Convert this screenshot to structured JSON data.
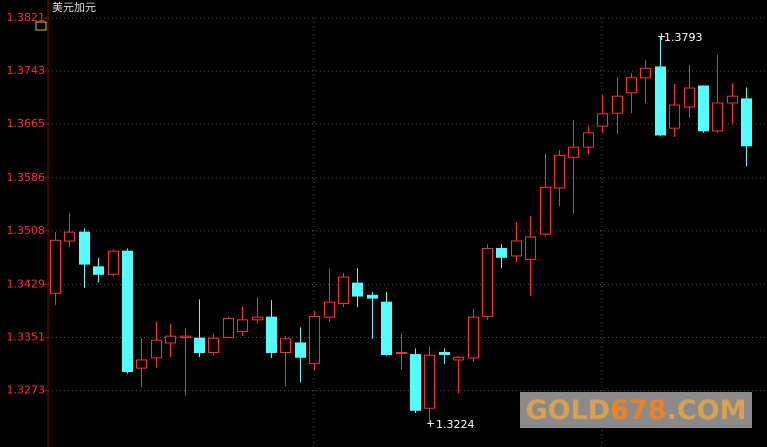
{
  "chart_data": {
    "type": "candlestick",
    "title": "美元加元",
    "ylim": [
      1.319,
      1.3821
    ],
    "yticks": [
      1.3821,
      1.3743,
      1.3665,
      1.3586,
      1.3508,
      1.3429,
      1.3351,
      1.3273
    ],
    "grid": true,
    "up_color": "#ff3030",
    "down_color": "#54ffff",
    "open": [
      1.3416,
      1.3493,
      1.3506,
      1.3455,
      1.3444,
      1.3478,
      1.3306,
      1.3321,
      1.3343,
      1.3351,
      1.335,
      1.3329,
      1.3351,
      1.336,
      1.3377,
      1.3381,
      1.3329,
      1.3343,
      1.3313,
      1.3381,
      1.3401,
      1.3431,
      1.3413,
      1.3403,
      1.3328,
      1.3326,
      1.3247,
      1.3329,
      1.3318,
      1.3321,
      1.3382,
      1.3482,
      1.3471,
      1.3466,
      1.3503,
      1.3571,
      1.3616,
      1.3631,
      1.3662,
      1.3681,
      1.3711,
      1.3733,
      1.3749,
      1.3659,
      1.369,
      1.3721,
      1.3655,
      1.3696,
      1.3702
    ],
    "high": [
      1.3506,
      1.3534,
      1.3512,
      1.3468,
      1.3481,
      1.3482,
      1.335,
      1.3375,
      1.3371,
      1.3365,
      1.3407,
      1.3357,
      1.3382,
      1.3397,
      1.341,
      1.3406,
      1.3353,
      1.3366,
      1.339,
      1.3452,
      1.3446,
      1.3453,
      1.3418,
      1.3418,
      1.3357,
      1.3335,
      1.3338,
      1.3335,
      1.3324,
      1.3393,
      1.3488,
      1.3488,
      1.3521,
      1.353,
      1.3622,
      1.3627,
      1.3671,
      1.3662,
      1.3708,
      1.3734,
      1.374,
      1.3759,
      1.3793,
      1.3724,
      1.3752,
      1.3722,
      1.3767,
      1.3725,
      1.3719
    ],
    "low": [
      1.3399,
      1.3484,
      1.3424,
      1.3432,
      1.3441,
      1.3298,
      1.3278,
      1.3307,
      1.3322,
      1.3266,
      1.3322,
      1.3325,
      1.335,
      1.3353,
      1.3372,
      1.3321,
      1.3279,
      1.3285,
      1.3303,
      1.3374,
      1.3396,
      1.3396,
      1.3349,
      1.3324,
      1.3303,
      1.324,
      1.3224,
      1.3312,
      1.3269,
      1.3315,
      1.3377,
      1.3453,
      1.3462,
      1.3412,
      1.35,
      1.3544,
      1.3533,
      1.3621,
      1.3652,
      1.365,
      1.3681,
      1.3696,
      1.3647,
      1.3646,
      1.3674,
      1.3652,
      1.3652,
      1.3665,
      1.3603
    ],
    "close": [
      1.3494,
      1.3506,
      1.3459,
      1.3444,
      1.3478,
      1.3301,
      1.3318,
      1.3347,
      1.3353,
      1.3353,
      1.3329,
      1.335,
      1.3379,
      1.3377,
      1.3381,
      1.3329,
      1.3349,
      1.3322,
      1.3382,
      1.3403,
      1.344,
      1.3412,
      1.3409,
      1.3326,
      1.3329,
      1.3244,
      1.3325,
      1.3326,
      1.3322,
      1.3381,
      1.3482,
      1.3469,
      1.3493,
      1.3499,
      1.3572,
      1.3619,
      1.3631,
      1.3652,
      1.368,
      1.3706,
      1.3733,
      1.3747,
      1.3649,
      1.3693,
      1.3718,
      1.3655,
      1.3696,
      1.3706,
      1.3633
    ],
    "max_label": "1.3793",
    "min_label": "1.3224",
    "watermark": [
      "GOLD",
      "678",
      ".COM"
    ]
  }
}
